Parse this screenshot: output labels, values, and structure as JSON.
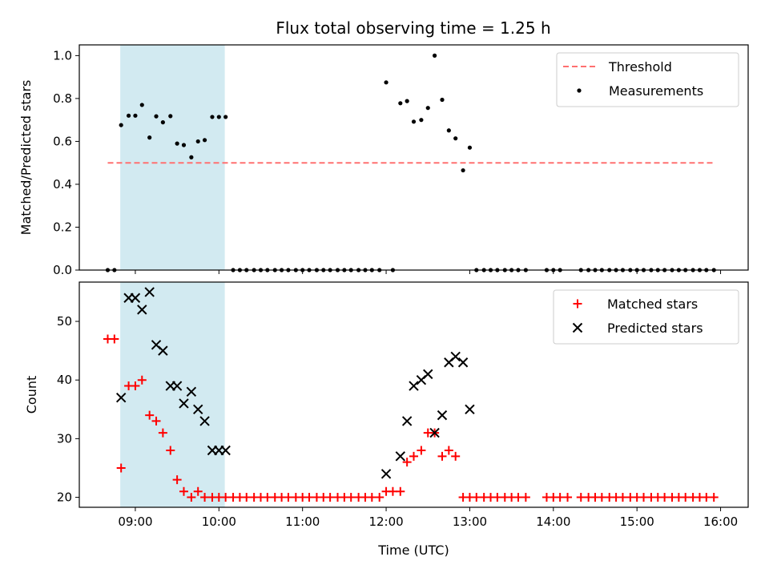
{
  "chart_data": [
    {
      "type": "scatter",
      "title": "Flux total observing time = 1.25 h",
      "ylabel": "Matched/Predicted stars",
      "xlim": [
        8.33,
        16.33
      ],
      "ylim": [
        0,
        1.05
      ],
      "yticks": [
        0.0,
        0.2,
        0.4,
        0.6,
        0.8,
        1.0
      ],
      "ytick_labels": [
        "0.0",
        "0.2",
        "0.4",
        "0.6",
        "0.8",
        "1.0"
      ],
      "shaded_span": {
        "x0": 8.82,
        "x1": 10.07,
        "color": "#add8e6"
      },
      "threshold": {
        "name": "Threshold",
        "y": 0.5,
        "x0": 8.67,
        "x1": 15.92,
        "color": "#ff7070",
        "style": "dashed"
      },
      "legend_position": "top-right",
      "series": [
        {
          "name": "Measurements",
          "color": "#000000",
          "marker": "dot",
          "points": [
            [
              8.67,
              0.0
            ],
            [
              8.75,
              0.0
            ],
            [
              8.83,
              0.676
            ],
            [
              8.92,
              0.72
            ],
            [
              9.0,
              0.72
            ],
            [
              9.08,
              0.77
            ],
            [
              9.17,
              0.618
            ],
            [
              9.25,
              0.717
            ],
            [
              9.33,
              0.689
            ],
            [
              9.42,
              0.718
            ],
            [
              9.5,
              0.59
            ],
            [
              9.58,
              0.583
            ],
            [
              9.67,
              0.526
            ],
            [
              9.75,
              0.6
            ],
            [
              9.83,
              0.606
            ],
            [
              9.92,
              0.714
            ],
            [
              10.0,
              0.714
            ],
            [
              10.08,
              0.714
            ],
            [
              10.17,
              0.0
            ],
            [
              10.25,
              0.0
            ],
            [
              10.33,
              0.0
            ],
            [
              10.42,
              0.0
            ],
            [
              10.5,
              0.0
            ],
            [
              10.58,
              0.0
            ],
            [
              10.67,
              0.0
            ],
            [
              10.75,
              0.0
            ],
            [
              10.83,
              0.0
            ],
            [
              10.92,
              0.0
            ],
            [
              11.0,
              0.0
            ],
            [
              11.08,
              0.0
            ],
            [
              11.17,
              0.0
            ],
            [
              11.25,
              0.0
            ],
            [
              11.33,
              0.0
            ],
            [
              11.42,
              0.0
            ],
            [
              11.5,
              0.0
            ],
            [
              11.58,
              0.0
            ],
            [
              11.67,
              0.0
            ],
            [
              11.75,
              0.0
            ],
            [
              11.83,
              0.0
            ],
            [
              11.92,
              0.0
            ],
            [
              12.0,
              0.875
            ],
            [
              12.08,
              0.0
            ],
            [
              12.17,
              0.778
            ],
            [
              12.25,
              0.788
            ],
            [
              12.33,
              0.692
            ],
            [
              12.42,
              0.7
            ],
            [
              12.5,
              0.756
            ],
            [
              12.58,
              1.0
            ],
            [
              12.67,
              0.794
            ],
            [
              12.75,
              0.651
            ],
            [
              12.83,
              0.614
            ],
            [
              12.92,
              0.465
            ],
            [
              13.0,
              0.571
            ],
            [
              13.08,
              0.0
            ],
            [
              13.17,
              0.0
            ],
            [
              13.25,
              0.0
            ],
            [
              13.33,
              0.0
            ],
            [
              13.42,
              0.0
            ],
            [
              13.5,
              0.0
            ],
            [
              13.58,
              0.0
            ],
            [
              13.67,
              0.0
            ],
            [
              13.92,
              0.0
            ],
            [
              14.0,
              0.0
            ],
            [
              14.08,
              0.0
            ],
            [
              14.33,
              0.0
            ],
            [
              14.42,
              0.0
            ],
            [
              14.5,
              0.0
            ],
            [
              14.58,
              0.0
            ],
            [
              14.67,
              0.0
            ],
            [
              14.75,
              0.0
            ],
            [
              14.83,
              0.0
            ],
            [
              14.92,
              0.0
            ],
            [
              15.0,
              0.0
            ],
            [
              15.08,
              0.0
            ],
            [
              15.17,
              0.0
            ],
            [
              15.25,
              0.0
            ],
            [
              15.33,
              0.0
            ],
            [
              15.42,
              0.0
            ],
            [
              15.5,
              0.0
            ],
            [
              15.58,
              0.0
            ],
            [
              15.67,
              0.0
            ],
            [
              15.75,
              0.0
            ],
            [
              15.83,
              0.0
            ],
            [
              15.92,
              0.0
            ]
          ]
        }
      ]
    },
    {
      "type": "scatter",
      "xlabel": "Time (UTC)",
      "ylabel": "Count",
      "xlim": [
        8.33,
        16.33
      ],
      "ylim": [
        18.3,
        56.7
      ],
      "xticks": [
        9,
        10,
        11,
        12,
        13,
        14,
        15,
        16
      ],
      "xtick_labels": [
        "09:00",
        "10:00",
        "11:00",
        "12:00",
        "13:00",
        "14:00",
        "15:00",
        "16:00"
      ],
      "yticks": [
        20,
        30,
        40,
        50
      ],
      "ytick_labels": [
        "20",
        "30",
        "40",
        "50"
      ],
      "shaded_span": {
        "x0": 8.82,
        "x1": 10.07,
        "color": "#add8e6"
      },
      "legend_position": "top-right",
      "series": [
        {
          "name": "Matched stars",
          "color": "#ff0000",
          "marker": "plus",
          "points": [
            [
              8.67,
              47
            ],
            [
              8.75,
              47
            ],
            [
              8.83,
              25
            ],
            [
              8.92,
              39
            ],
            [
              9.0,
              39
            ],
            [
              9.08,
              40
            ],
            [
              9.17,
              34
            ],
            [
              9.25,
              33
            ],
            [
              9.33,
              31
            ],
            [
              9.42,
              28
            ],
            [
              9.5,
              23
            ],
            [
              9.58,
              21
            ],
            [
              9.67,
              20
            ],
            [
              9.75,
              21
            ],
            [
              9.83,
              20
            ],
            [
              9.92,
              20
            ],
            [
              10.0,
              20
            ],
            [
              10.08,
              20
            ],
            [
              10.17,
              20
            ],
            [
              10.25,
              20
            ],
            [
              10.33,
              20
            ],
            [
              10.42,
              20
            ],
            [
              10.5,
              20
            ],
            [
              10.58,
              20
            ],
            [
              10.67,
              20
            ],
            [
              10.75,
              20
            ],
            [
              10.83,
              20
            ],
            [
              10.92,
              20
            ],
            [
              11.0,
              20
            ],
            [
              11.08,
              20
            ],
            [
              11.17,
              20
            ],
            [
              11.25,
              20
            ],
            [
              11.33,
              20
            ],
            [
              11.42,
              20
            ],
            [
              11.5,
              20
            ],
            [
              11.58,
              20
            ],
            [
              11.67,
              20
            ],
            [
              11.75,
              20
            ],
            [
              11.83,
              20
            ],
            [
              11.92,
              20
            ],
            [
              12.0,
              21
            ],
            [
              12.08,
              21
            ],
            [
              12.17,
              21
            ],
            [
              12.25,
              26
            ],
            [
              12.33,
              27
            ],
            [
              12.42,
              28
            ],
            [
              12.5,
              31
            ],
            [
              12.58,
              31
            ],
            [
              12.67,
              27
            ],
            [
              12.75,
              28
            ],
            [
              12.83,
              27
            ],
            [
              12.92,
              20
            ],
            [
              13.0,
              20
            ],
            [
              13.08,
              20
            ],
            [
              13.17,
              20
            ],
            [
              13.25,
              20
            ],
            [
              13.33,
              20
            ],
            [
              13.42,
              20
            ],
            [
              13.5,
              20
            ],
            [
              13.58,
              20
            ],
            [
              13.67,
              20
            ],
            [
              13.92,
              20
            ],
            [
              14.0,
              20
            ],
            [
              14.08,
              20
            ],
            [
              14.17,
              20
            ],
            [
              14.33,
              20
            ],
            [
              14.42,
              20
            ],
            [
              14.5,
              20
            ],
            [
              14.58,
              20
            ],
            [
              14.67,
              20
            ],
            [
              14.75,
              20
            ],
            [
              14.83,
              20
            ],
            [
              14.92,
              20
            ],
            [
              15.0,
              20
            ],
            [
              15.08,
              20
            ],
            [
              15.17,
              20
            ],
            [
              15.25,
              20
            ],
            [
              15.33,
              20
            ],
            [
              15.42,
              20
            ],
            [
              15.5,
              20
            ],
            [
              15.58,
              20
            ],
            [
              15.67,
              20
            ],
            [
              15.75,
              20
            ],
            [
              15.83,
              20
            ],
            [
              15.92,
              20
            ]
          ]
        },
        {
          "name": "Predicted stars",
          "color": "#000000",
          "marker": "x",
          "points": [
            [
              8.83,
              37
            ],
            [
              8.92,
              54
            ],
            [
              9.0,
              54
            ],
            [
              9.08,
              52
            ],
            [
              9.17,
              55
            ],
            [
              9.25,
              46
            ],
            [
              9.33,
              45
            ],
            [
              9.42,
              39
            ],
            [
              9.5,
              39
            ],
            [
              9.58,
              36
            ],
            [
              9.67,
              38
            ],
            [
              9.75,
              35
            ],
            [
              9.83,
              33
            ],
            [
              9.92,
              28
            ],
            [
              10.0,
              28
            ],
            [
              10.08,
              28
            ],
            [
              12.0,
              24
            ],
            [
              12.17,
              27
            ],
            [
              12.25,
              33
            ],
            [
              12.33,
              39
            ],
            [
              12.42,
              40
            ],
            [
              12.5,
              41
            ],
            [
              12.58,
              31
            ],
            [
              12.67,
              34
            ],
            [
              12.75,
              43
            ],
            [
              12.83,
              44
            ],
            [
              12.92,
              43
            ],
            [
              13.0,
              35
            ]
          ]
        }
      ]
    }
  ]
}
